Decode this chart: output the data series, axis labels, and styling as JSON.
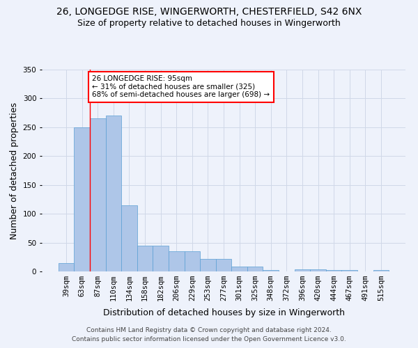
{
  "title_line1": "26, LONGEDGE RISE, WINGERWORTH, CHESTERFIELD, S42 6NX",
  "title_line2": "Size of property relative to detached houses in Wingerworth",
  "xlabel": "Distribution of detached houses by size in Wingerworth",
  "ylabel": "Number of detached properties",
  "footer_line1": "Contains HM Land Registry data © Crown copyright and database right 2024.",
  "footer_line2": "Contains public sector information licensed under the Open Government Licence v3.0.",
  "categories": [
    "39sqm",
    "63sqm",
    "87sqm",
    "110sqm",
    "134sqm",
    "158sqm",
    "182sqm",
    "206sqm",
    "229sqm",
    "253sqm",
    "277sqm",
    "301sqm",
    "325sqm",
    "348sqm",
    "372sqm",
    "396sqm",
    "420sqm",
    "444sqm",
    "467sqm",
    "491sqm",
    "515sqm"
  ],
  "values": [
    15,
    250,
    265,
    270,
    115,
    45,
    45,
    35,
    35,
    22,
    22,
    8,
    8,
    2,
    0,
    4,
    4,
    3,
    3,
    0,
    2
  ],
  "bar_color": "#aec6e8",
  "bar_edge_color": "#5a9fd4",
  "grid_color": "#d0d8e8",
  "background_color": "#eef2fb",
  "annotation_text": "26 LONGEDGE RISE: 95sqm\n← 31% of detached houses are smaller (325)\n68% of semi-detached houses are larger (698) →",
  "annotation_box_color": "white",
  "annotation_box_edge_color": "red",
  "red_line_x": 1.5,
  "ylim": [
    0,
    350
  ],
  "yticks": [
    0,
    50,
    100,
    150,
    200,
    250,
    300,
    350
  ],
  "title_fontsize": 10,
  "subtitle_fontsize": 9,
  "tick_fontsize": 7.5,
  "label_fontsize": 9,
  "footer_fontsize": 6.5
}
